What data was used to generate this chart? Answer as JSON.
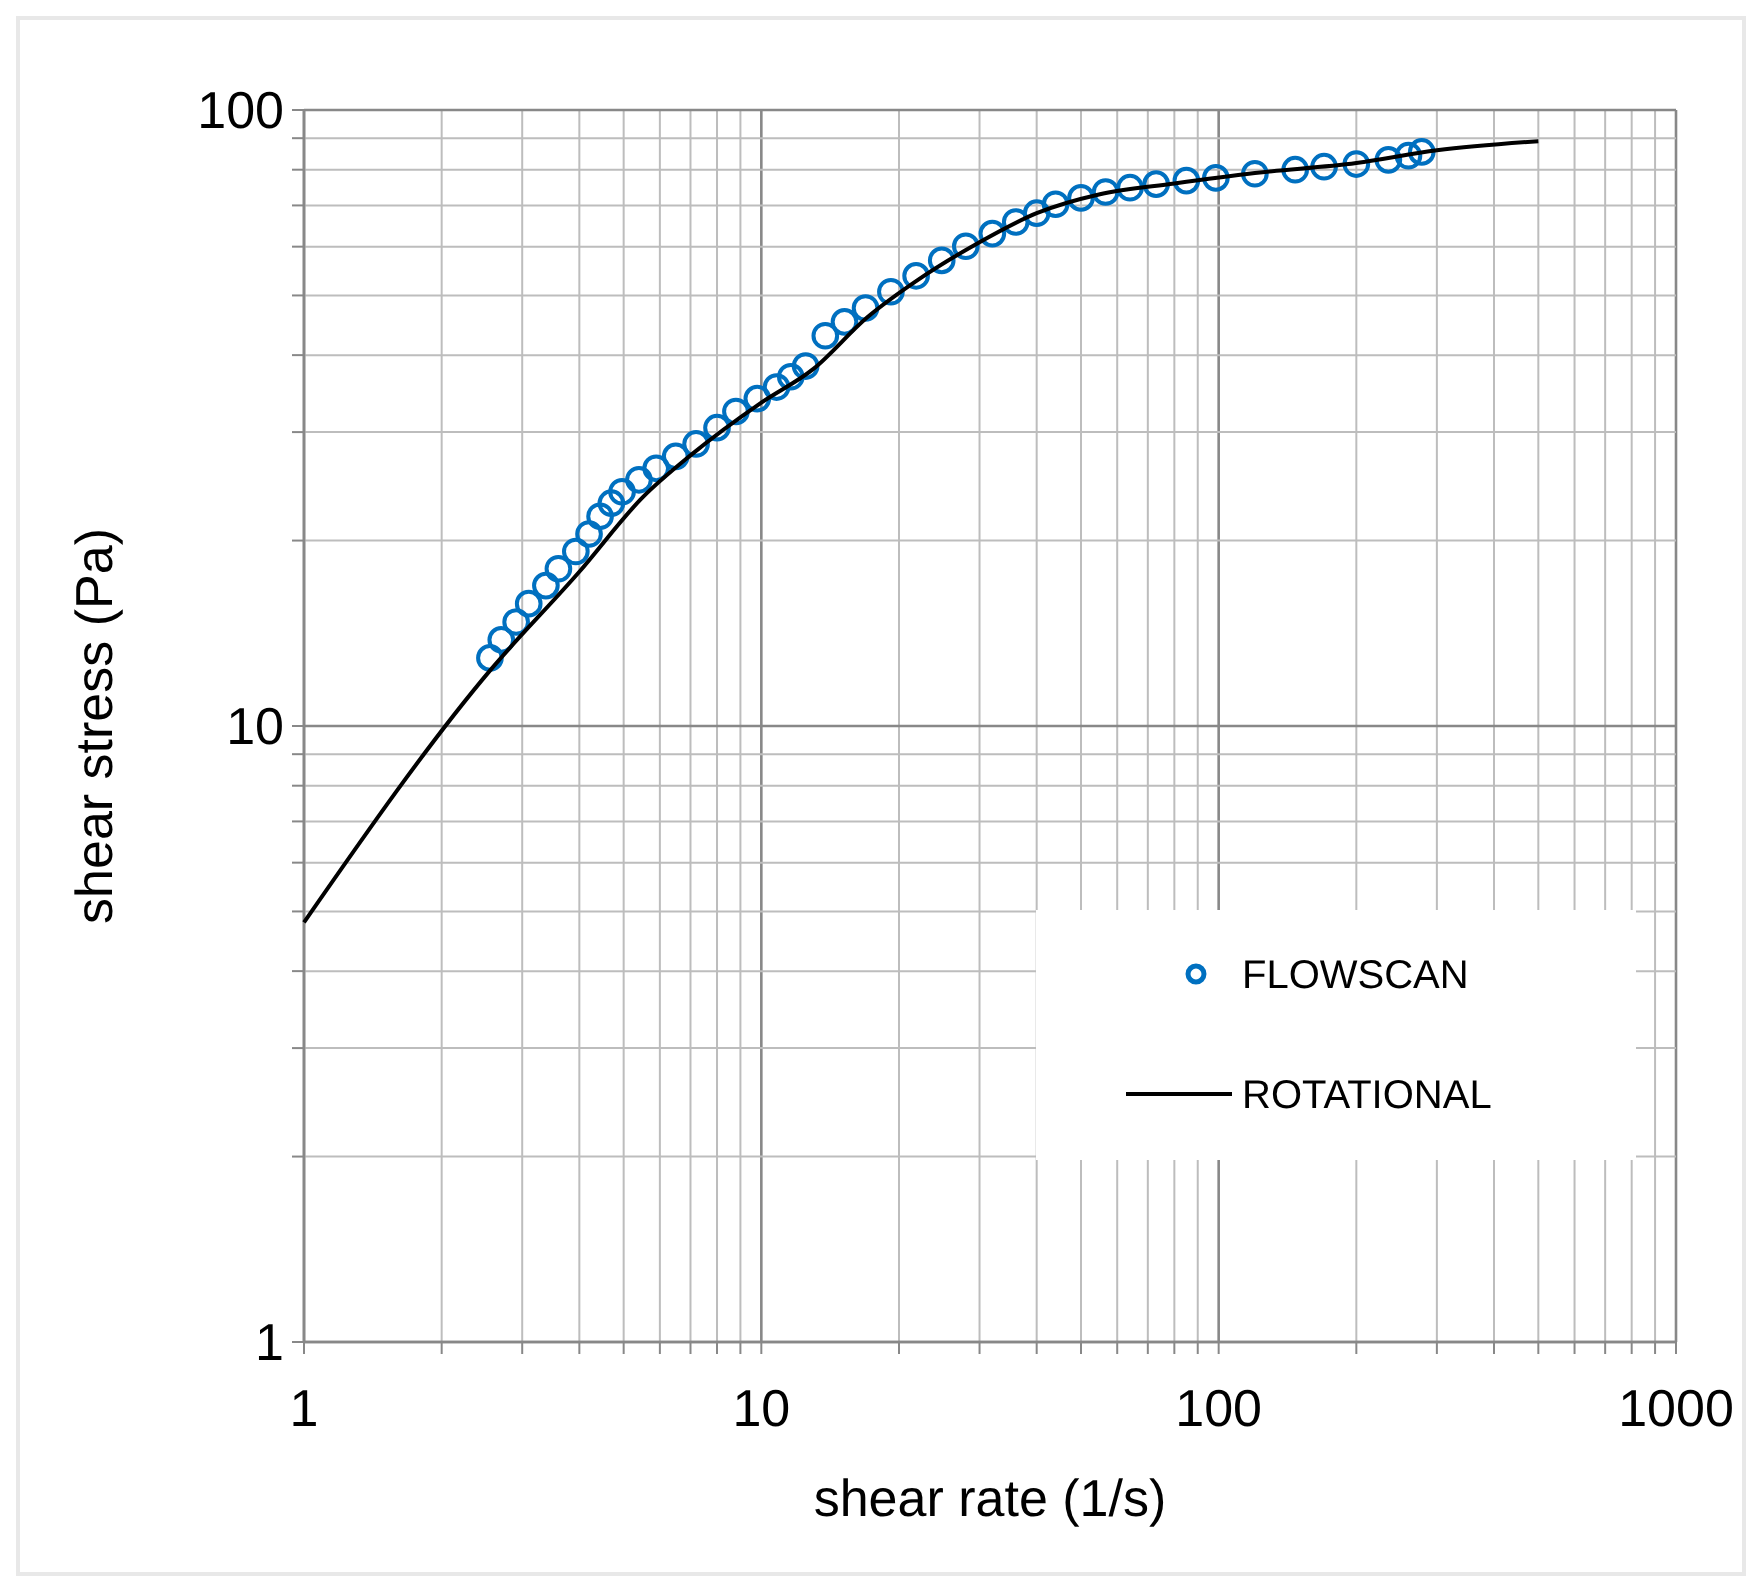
{
  "chart_data": {
    "type": "scatter",
    "xlabel": "shear rate (1/s)",
    "ylabel": "shear stress (Pa)",
    "log": "xy",
    "grid": true,
    "legend": "bottom right",
    "marker": "circle",
    "xlim": [
      1,
      1000
    ],
    "ylim": [
      1,
      100
    ],
    "xticks": [
      1,
      {
        "value": 2,
        "label": null
      },
      {
        "value": 3,
        "label": null
      },
      {
        "value": 4,
        "label": null
      },
      {
        "value": 5,
        "label": null
      },
      {
        "value": 6,
        "label": null
      },
      {
        "value": 7,
        "label": null
      },
      {
        "value": 8,
        "label": null
      },
      {
        "value": 9,
        "label": null
      },
      10,
      {
        "value": 20,
        "label": null
      },
      {
        "value": 30,
        "label": null
      },
      {
        "value": 40,
        "label": null
      },
      {
        "value": 50,
        "label": null
      },
      {
        "value": 60,
        "label": null
      },
      {
        "value": 70,
        "label": null
      },
      {
        "value": 80,
        "label": null
      },
      {
        "value": 90,
        "label": null
      },
      100,
      {
        "value": 200,
        "label": null
      },
      {
        "value": 300,
        "label": null
      },
      {
        "value": 400,
        "label": null
      },
      {
        "value": 500,
        "label": null
      },
      {
        "value": 600,
        "label": null
      },
      {
        "value": 700,
        "label": null
      },
      {
        "value": 800,
        "label": null
      },
      {
        "value": 900,
        "label": null
      },
      1000
    ],
    "yticks": [
      1,
      {
        "value": 2,
        "label": null
      },
      {
        "value": 3,
        "label": null
      },
      {
        "value": 4,
        "label": null
      },
      {
        "value": 5,
        "label": null
      },
      {
        "value": 6,
        "label": null
      },
      {
        "value": 7,
        "label": null
      },
      {
        "value": 8,
        "label": null
      },
      {
        "value": 9,
        "label": null
      },
      10,
      {
        "value": 20,
        "label": null
      },
      {
        "value": 30,
        "label": null
      },
      {
        "value": 40,
        "label": null
      },
      {
        "value": 50,
        "label": null
      },
      {
        "value": 60,
        "label": null
      },
      {
        "value": 70,
        "label": null
      },
      {
        "value": 80,
        "label": null
      },
      {
        "value": 90,
        "label": null
      },
      100
    ],
    "series": [
      {
        "name": "FLOWSCAN",
        "color": "#0070c0",
        "x": [
          2.55,
          2.7,
          2.91,
          3.1,
          3.38,
          3.6,
          3.93,
          4.2,
          4.44,
          4.7,
          4.96,
          5.4,
          5.89,
          6.5,
          7.2,
          8.0,
          8.8,
          9.8,
          10.8,
          11.6,
          12.5,
          13.8,
          15.2,
          16.9,
          19.2,
          21.8,
          24.8,
          28,
          32,
          36,
          40,
          44,
          50,
          56.6,
          64,
          73,
          85,
          98.6,
          120,
          147,
          170,
          200,
          235,
          260,
          278
        ],
        "values": [
          12.9,
          13.8,
          14.75,
          15.8,
          16.9,
          18.0,
          19.2,
          20.5,
          21.9,
          23.0,
          24.0,
          25.1,
          26.2,
          27.4,
          28.7,
          30.5,
          32.4,
          34.0,
          35.5,
          36.9,
          38.4,
          43,
          45.3,
          47.7,
          50.7,
          53.8,
          57,
          60.1,
          63,
          65.8,
          68,
          70.3,
          72,
          73.6,
          74.8,
          75.8,
          76.8,
          77.6,
          78.8,
          80,
          80.9,
          81.7,
          83,
          84.3,
          85.5
        ]
      },
      {
        "name": "ROTATIONAL",
        "type": "line",
        "marker": "none",
        "color": "#000000",
        "x": [
          1,
          2.55,
          4,
          5.5,
          7,
          10,
          13,
          17,
          22,
          30,
          40,
          55,
          80,
          120,
          200,
          300,
          500
        ],
        "values": [
          4.8,
          12.3,
          17.8,
          23.5,
          27.5,
          33.5,
          38,
          46,
          53,
          61,
          68,
          73,
          76,
          79,
          82,
          86,
          89
        ]
      }
    ]
  }
}
